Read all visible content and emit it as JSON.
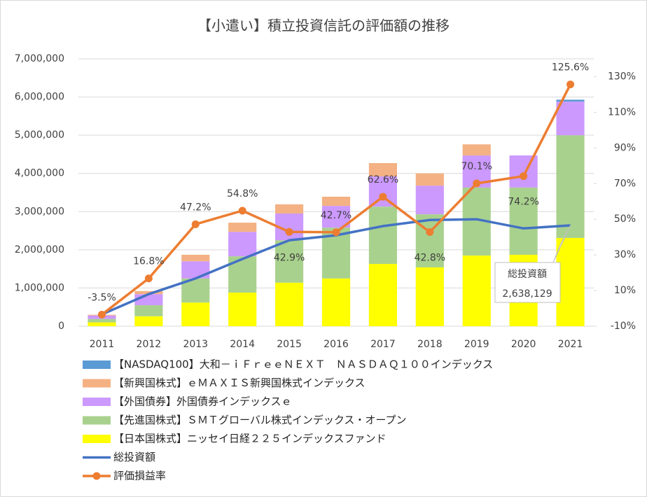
{
  "chart_data": {
    "type": "bar",
    "title": "【小遣い】積立投資信託の評価額の推移",
    "categories": [
      "2011",
      "2012",
      "2013",
      "2014",
      "2015",
      "2016",
      "2017",
      "2018",
      "2019",
      "2020",
      "2021"
    ],
    "ylim": [
      0,
      7000000
    ],
    "yticks": [
      0,
      {
        "value": 1000000,
        "label": "1,000,000"
      },
      {
        "value": 2000000,
        "label": "2,000,000"
      },
      {
        "value": 3000000,
        "label": "3,000,000"
      },
      {
        "value": 4000000,
        "label": "4,000,000"
      },
      {
        "value": 5000000,
        "label": "5,000,000"
      },
      {
        "value": 6000000,
        "label": "6,000,000"
      },
      {
        "value": 7000000,
        "label": "7,000,000"
      }
    ],
    "y2lim": [
      -10,
      140
    ],
    "y2ticks": [
      {
        "value": -10,
        "label": "-10%"
      },
      {
        "value": 10,
        "label": "10%"
      },
      {
        "value": 30,
        "label": "30%"
      },
      {
        "value": 50,
        "label": "50%"
      },
      {
        "value": 70,
        "label": "70%"
      },
      {
        "value": 90,
        "label": "90%"
      },
      {
        "value": 110,
        "label": "110%"
      },
      {
        "value": 130,
        "label": "130%"
      }
    ],
    "series": [
      {
        "name": "【NASDAQ100】大和－ｉＦｒｅｅＮＥＸＴ　ＮＡＳＤＡＱ１００インデックス",
        "type": "bar",
        "color": "#5B9BD5",
        "values": [
          0,
          0,
          0,
          0,
          0,
          0,
          0,
          0,
          0,
          0,
          50000
        ]
      },
      {
        "name": "【新興国株式】ｅＭＡＸＩＳ新興国株式インデックス",
        "type": "bar",
        "color": "#F4B183",
        "values": [
          20000,
          80000,
          170000,
          240000,
          240000,
          240000,
          350000,
          320000,
          290000,
          0,
          0
        ]
      },
      {
        "name": "【外国債券】外国債券インデックスｅ",
        "type": "bar",
        "color": "#CC99FF",
        "values": [
          90000,
          290000,
          450000,
          640000,
          700000,
          570000,
          790000,
          750000,
          840000,
          840000,
          880000
        ]
      },
      {
        "name": "【先進国株式】ＳＭＴグローバル株式インデックス・オープン",
        "type": "bar",
        "color": "#A9D18E",
        "values": [
          90000,
          290000,
          630000,
          950000,
          1110000,
          1330000,
          1500000,
          1390000,
          1780000,
          1760000,
          2690000
        ]
      },
      {
        "name": "【日本国株式】ニッセイ日経２２５インデックスファンド",
        "type": "bar",
        "color": "#FFFF00",
        "values": [
          100000,
          260000,
          620000,
          880000,
          1140000,
          1250000,
          1630000,
          1540000,
          1850000,
          1870000,
          2310000
        ]
      },
      {
        "name": "総投資額",
        "type": "line",
        "color": "#4472C4",
        "values": [
          310000,
          840000,
          1250000,
          1760000,
          2250000,
          2380000,
          2620000,
          2780000,
          2800000,
          2560000,
          2638129
        ],
        "value_labels": [
          null,
          null,
          null,
          null,
          null,
          null,
          null,
          null,
          null,
          null,
          "2,638,129"
        ]
      },
      {
        "name": "評価損益率",
        "type": "line",
        "axis": "y2",
        "color": "#ED7D31",
        "marker": true,
        "values": [
          -3.5,
          16.8,
          47.2,
          54.8,
          42.9,
          42.7,
          62.6,
          42.8,
          70.1,
          74.2,
          125.6
        ],
        "value_labels": [
          "-3.5%",
          "16.8%",
          "47.2%",
          "54.8%",
          "42.9%",
          "42.7%",
          "62.6%",
          "42.8%",
          "70.1%",
          "74.2%",
          "125.6%"
        ]
      }
    ]
  }
}
